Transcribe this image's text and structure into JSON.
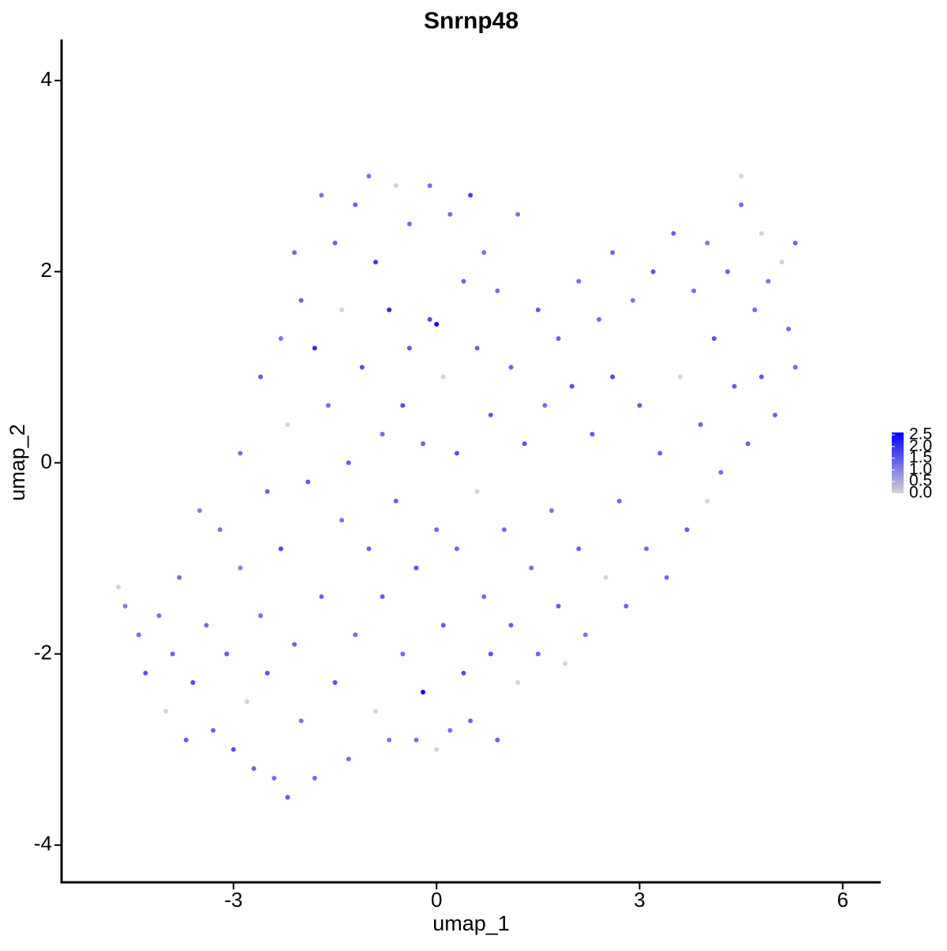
{
  "chart_data": {
    "type": "scatter",
    "title": "Snrnp48",
    "x_label": "umap_1",
    "y_label": "umap_2",
    "xlim": [
      -5.54,
      6.55
    ],
    "ylim": [
      -4.39,
      4.43
    ],
    "xticks": [
      -3,
      0,
      3,
      6
    ],
    "yticks": [
      -4,
      -2,
      0,
      2,
      4
    ],
    "color_low": "#d3d3d3",
    "color_high": "#0000ff",
    "colorlim": [
      0,
      2.5
    ],
    "colorbar_ticks": [
      {
        "value": 0,
        "label": "0.0"
      },
      {
        "value": 0.5,
        "label": "0.5"
      },
      {
        "value": 1,
        "label": "1.0"
      },
      {
        "value": 1.5,
        "label": "1.5"
      },
      {
        "value": 2,
        "label": "2.0"
      },
      {
        "value": 2.5,
        "label": "2.5"
      }
    ],
    "x": [
      -4.7,
      -4.6,
      -4.4,
      -4.3,
      -4.1,
      -4.0,
      -3.9,
      -3.8,
      -3.7,
      -3.6,
      -3.5,
      -3.4,
      -3.3,
      -3.2,
      -3.1,
      -3.0,
      -2.9,
      -2.9,
      -2.8,
      -2.7,
      -2.6,
      -2.6,
      -2.5,
      -2.5,
      -2.4,
      -2.3,
      -2.3,
      -2.2,
      -2.2,
      -2.1,
      -2.1,
      -2.0,
      -2.0,
      -1.9,
      -1.8,
      -1.8,
      -1.7,
      -1.7,
      -1.6,
      -1.5,
      -1.5,
      -1.4,
      -1.4,
      -1.3,
      -1.3,
      -1.2,
      -1.2,
      -1.1,
      -1.0,
      -1.0,
      -0.9,
      -0.9,
      -0.8,
      -0.8,
      -0.7,
      -0.7,
      -0.6,
      -0.6,
      -0.5,
      -0.5,
      -0.4,
      -0.4,
      -0.3,
      -0.3,
      -0.2,
      -0.2,
      -0.1,
      -0.1,
      0.0,
      0.0,
      0.0,
      0.1,
      0.1,
      0.2,
      0.2,
      0.3,
      0.3,
      0.4,
      0.4,
      0.5,
      0.5,
      0.6,
      0.6,
      0.7,
      0.7,
      0.8,
      0.8,
      0.9,
      0.9,
      1.0,
      1.1,
      1.1,
      1.2,
      1.2,
      1.3,
      1.4,
      1.5,
      1.5,
      1.6,
      1.7,
      1.8,
      1.8,
      1.9,
      2.0,
      2.1,
      2.1,
      2.2,
      2.3,
      2.4,
      2.5,
      2.6,
      2.6,
      2.7,
      2.8,
      2.9,
      3.0,
      3.1,
      3.2,
      3.3,
      3.4,
      3.5,
      3.6,
      3.7,
      3.8,
      3.9,
      4.0,
      4.0,
      4.1,
      4.2,
      4.3,
      4.4,
      4.5,
      4.5,
      4.6,
      4.7,
      4.8,
      4.8,
      4.9,
      5.0,
      5.1,
      5.2,
      5.3,
      5.3
    ],
    "y": [
      -1.3,
      -1.5,
      -1.8,
      -2.2,
      -1.6,
      -2.6,
      -2.0,
      -1.2,
      -2.9,
      -2.3,
      -0.5,
      -1.7,
      -2.8,
      -0.7,
      -2.0,
      -3.0,
      0.1,
      -1.1,
      -2.5,
      -3.2,
      0.9,
      -1.6,
      -0.3,
      -2.2,
      -3.3,
      1.3,
      -0.9,
      -3.5,
      0.4,
      -1.9,
      2.2,
      -2.7,
      1.7,
      -0.2,
      1.2,
      -3.3,
      2.8,
      -1.4,
      0.6,
      -2.3,
      2.3,
      -0.6,
      1.6,
      -3.1,
      0.0,
      2.7,
      -1.8,
      1.0,
      -0.9,
      3.0,
      -2.6,
      2.1,
      0.3,
      -1.4,
      1.6,
      -2.9,
      2.9,
      -0.4,
      0.6,
      -2.0,
      2.5,
      1.2,
      -1.1,
      -2.9,
      0.2,
      -2.4,
      2.9,
      1.5,
      -0.7,
      -3.0,
      1.45,
      0.9,
      -1.7,
      2.6,
      -2.8,
      0.1,
      -0.9,
      1.9,
      -2.2,
      2.8,
      -2.7,
      -0.3,
      1.2,
      -1.4,
      2.2,
      0.5,
      -2.0,
      1.8,
      -2.9,
      -0.7,
      1.0,
      -1.7,
      2.6,
      -2.3,
      0.2,
      -1.1,
      1.6,
      -2.0,
      0.6,
      -0.5,
      1.3,
      -1.5,
      -2.1,
      0.8,
      1.9,
      -0.9,
      -1.8,
      0.3,
      1.5,
      -1.2,
      2.2,
      0.9,
      -0.4,
      -1.5,
      1.7,
      0.6,
      -0.9,
      2.0,
      0.1,
      -1.2,
      2.4,
      0.9,
      -0.7,
      1.8,
      0.4,
      2.3,
      -0.4,
      1.3,
      -0.1,
      2.0,
      0.8,
      3.0,
      2.7,
      0.2,
      1.6,
      2.4,
      0.9,
      1.9,
      0.5,
      2.1,
      1.4,
      2.3,
      1.0
    ],
    "values": [
      0.0,
      1.0,
      1.2,
      1.5,
      1.1,
      0.0,
      1.3,
      1.2,
      1.4,
      1.6,
      1.0,
      1.2,
      1.3,
      1.1,
      1.4,
      1.5,
      1.2,
      1.0,
      0.0,
      1.3,
      1.4,
      1.2,
      1.3,
      1.5,
      1.2,
      1.1,
      1.6,
      1.4,
      0.0,
      1.3,
      1.2,
      1.1,
      1.3,
      1.4,
      2.0,
      1.2,
      1.1,
      1.3,
      1.2,
      1.5,
      1.3,
      1.1,
      0.0,
      1.2,
      1.4,
      1.3,
      1.2,
      1.5,
      1.3,
      1.1,
      0.0,
      1.8,
      1.2,
      1.4,
      2.0,
      1.1,
      0.0,
      1.3,
      1.6,
      1.2,
      1.2,
      1.4,
      1.5,
      1.1,
      1.3,
      2.5,
      1.2,
      1.6,
      1.2,
      0.0,
      2.5,
      0.0,
      1.4,
      1.2,
      1.1,
      1.5,
      1.2,
      1.3,
      1.6,
      1.8,
      1.3,
      0.0,
      1.3,
      1.2,
      1.1,
      1.4,
      1.5,
      1.2,
      1.3,
      1.2,
      1.3,
      1.4,
      1.1,
      0.0,
      1.5,
      1.2,
      1.4,
      1.3,
      1.2,
      1.1,
      1.3,
      1.4,
      0.0,
      1.5,
      1.2,
      1.3,
      1.1,
      1.4,
      1.2,
      0.0,
      1.3,
      1.6,
      1.2,
      1.3,
      1.1,
      1.4,
      1.2,
      1.5,
      1.3,
      1.2,
      1.3,
      0.0,
      1.4,
      1.2,
      1.3,
      1.1,
      0.0,
      1.5,
      1.2,
      1.3,
      1.4,
      0.0,
      1.2,
      1.3,
      1.2,
      0.0,
      1.4,
      1.1,
      1.3,
      0.0,
      1.2,
      1.3,
      1.2
    ]
  }
}
